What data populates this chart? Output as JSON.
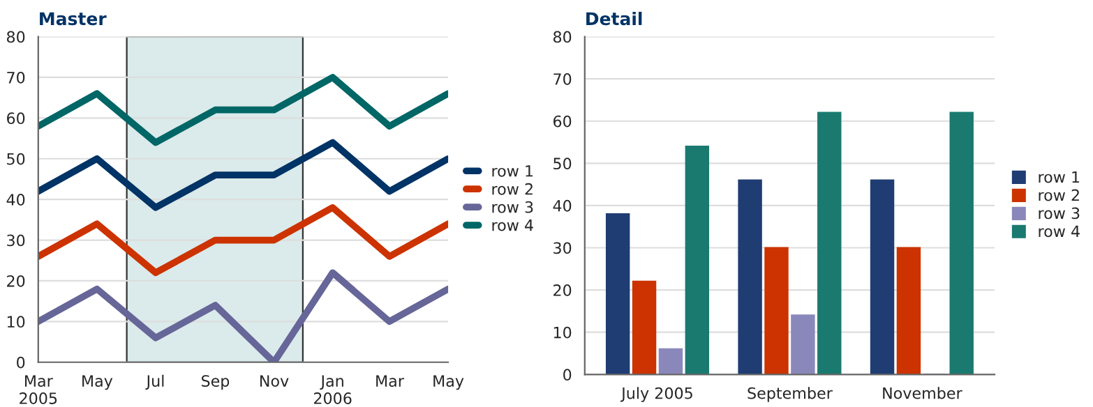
{
  "chart_data": [
    {
      "type": "line",
      "title": "Master",
      "x": [
        "2005-03",
        "2005-05",
        "2005-07",
        "2005-09",
        "2005-11",
        "2006-01",
        "2006-03",
        "2006-05"
      ],
      "series": [
        {
          "name": "row 1",
          "color": "#003366",
          "values": [
            42,
            50,
            38,
            46,
            46,
            54,
            42,
            50
          ]
        },
        {
          "name": "row 2",
          "color": "#cc3300",
          "values": [
            26,
            34,
            22,
            30,
            30,
            38,
            26,
            34
          ]
        },
        {
          "name": "row 3",
          "color": "#666699",
          "values": [
            10,
            18,
            6,
            14,
            0,
            22,
            10,
            18
          ]
        },
        {
          "name": "row 4",
          "color": "#006666",
          "values": [
            58,
            66,
            54,
            62,
            62,
            70,
            58,
            66
          ]
        }
      ],
      "xlim": [
        "2005-03",
        "2006-05"
      ],
      "xticks": [
        {
          "value": "2005-03",
          "label": "Mar\n2005"
        },
        {
          "value": "2005-05",
          "label": "May"
        },
        {
          "value": "2005-07",
          "label": "Jul"
        },
        {
          "value": "2005-09",
          "label": "Sep"
        },
        {
          "value": "2005-11",
          "label": "Nov"
        },
        {
          "value": "2006-01",
          "label": "Jan\n2006"
        },
        {
          "value": "2006-03",
          "label": "Mar"
        },
        {
          "value": "2006-05",
          "label": "May"
        }
      ],
      "ylim": [
        0,
        80
      ],
      "yticks": [
        0,
        10,
        20,
        30,
        40,
        50,
        60,
        70,
        80
      ],
      "bands": [
        {
          "axis": "x",
          "from": "2005-06",
          "to": "2005-12",
          "color": "#dbeaea"
        }
      ],
      "grid": "y",
      "legend": "right",
      "marker": "none",
      "line_style": "solid"
    },
    {
      "type": "bar",
      "title": "Detail",
      "categories": [
        "July 2005",
        "September",
        "November"
      ],
      "series": [
        {
          "name": "row 1",
          "color": "#1f3d73",
          "values": [
            38,
            46,
            46
          ]
        },
        {
          "name": "row 2",
          "color": "#cc3300",
          "values": [
            22,
            30,
            30
          ]
        },
        {
          "name": "row 3",
          "color": "#8a88bb",
          "values": [
            6,
            14,
            0
          ]
        },
        {
          "name": "row 4",
          "color": "#1a7a70",
          "values": [
            54,
            62,
            62
          ]
        }
      ],
      "ylim": [
        0,
        80
      ],
      "yticks": [
        0,
        10,
        20,
        30,
        40,
        50,
        60,
        70,
        80
      ],
      "grid": "y",
      "legend": "right"
    }
  ]
}
